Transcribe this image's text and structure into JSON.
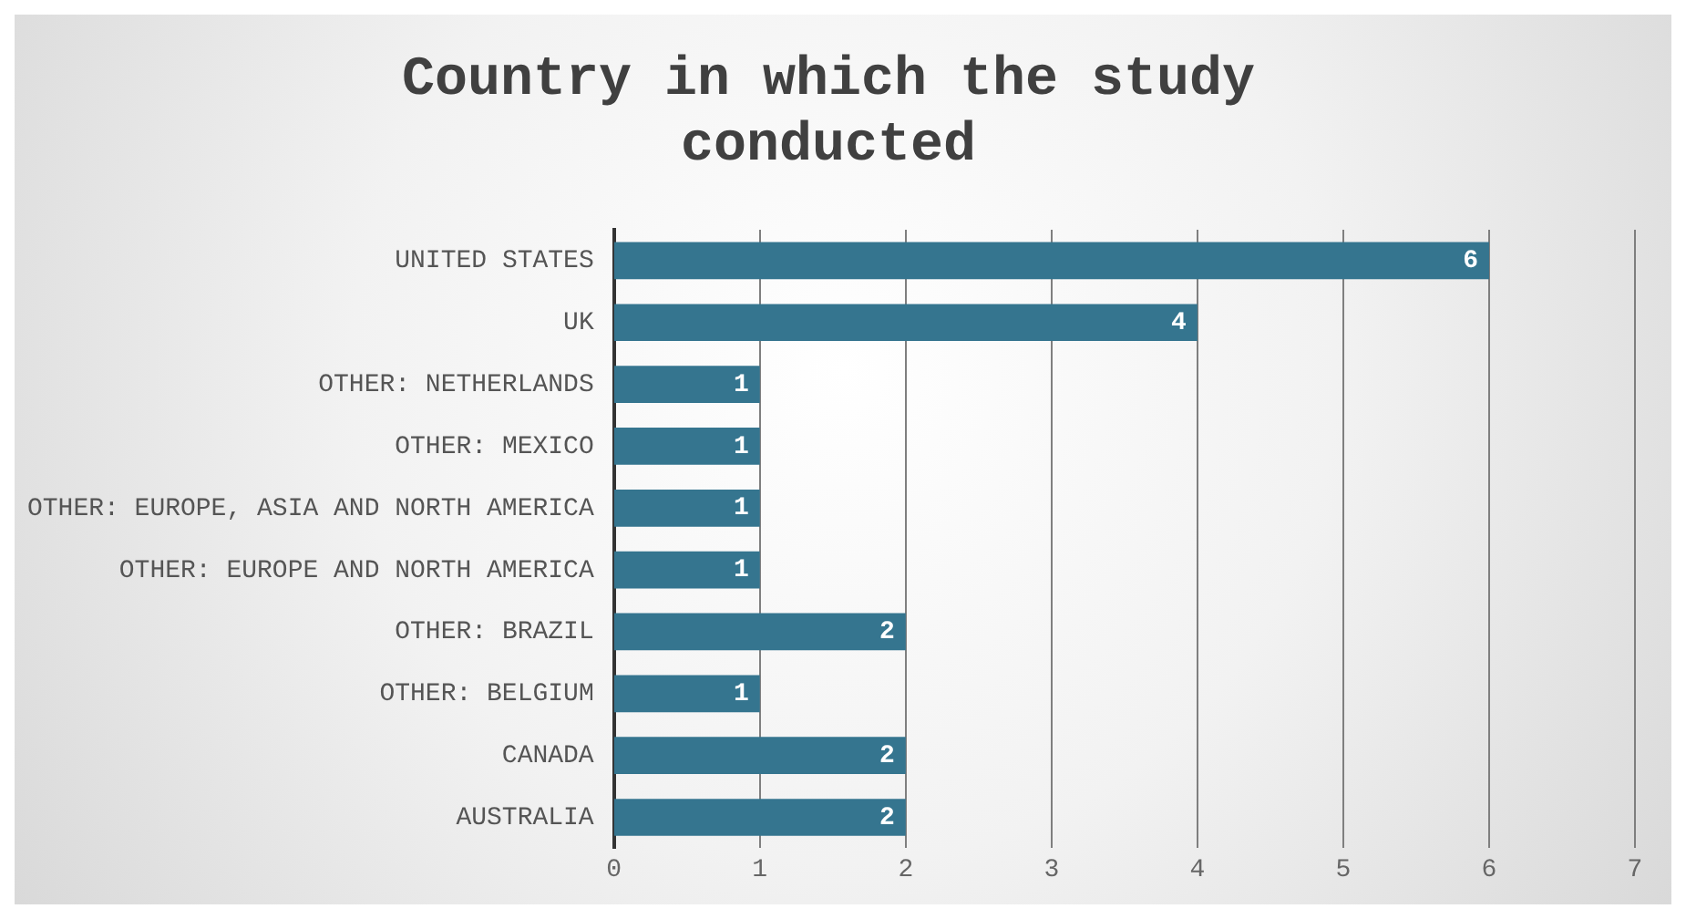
{
  "chart_data": {
    "type": "bar",
    "orientation": "horizontal",
    "title": "Country in which the study conducted",
    "categories": [
      "UNITED STATES",
      "UK",
      "OTHER: NETHERLANDS",
      "OTHER: MEXICO",
      "OTHER: EUROPE, ASIA AND NORTH AMERICA",
      "OTHER: EUROPE AND NORTH AMERICA",
      "OTHER: BRAZIL",
      "OTHER: BELGIUM",
      "CANADA",
      "AUSTRALIA"
    ],
    "values": [
      6,
      4,
      1,
      1,
      1,
      1,
      2,
      1,
      2,
      2
    ],
    "color": "#35758f",
    "xlim": [
      0,
      7
    ],
    "xticks": [
      0,
      1,
      2,
      3,
      4,
      5,
      6,
      7
    ],
    "grid": "x",
    "data_labels": true
  }
}
